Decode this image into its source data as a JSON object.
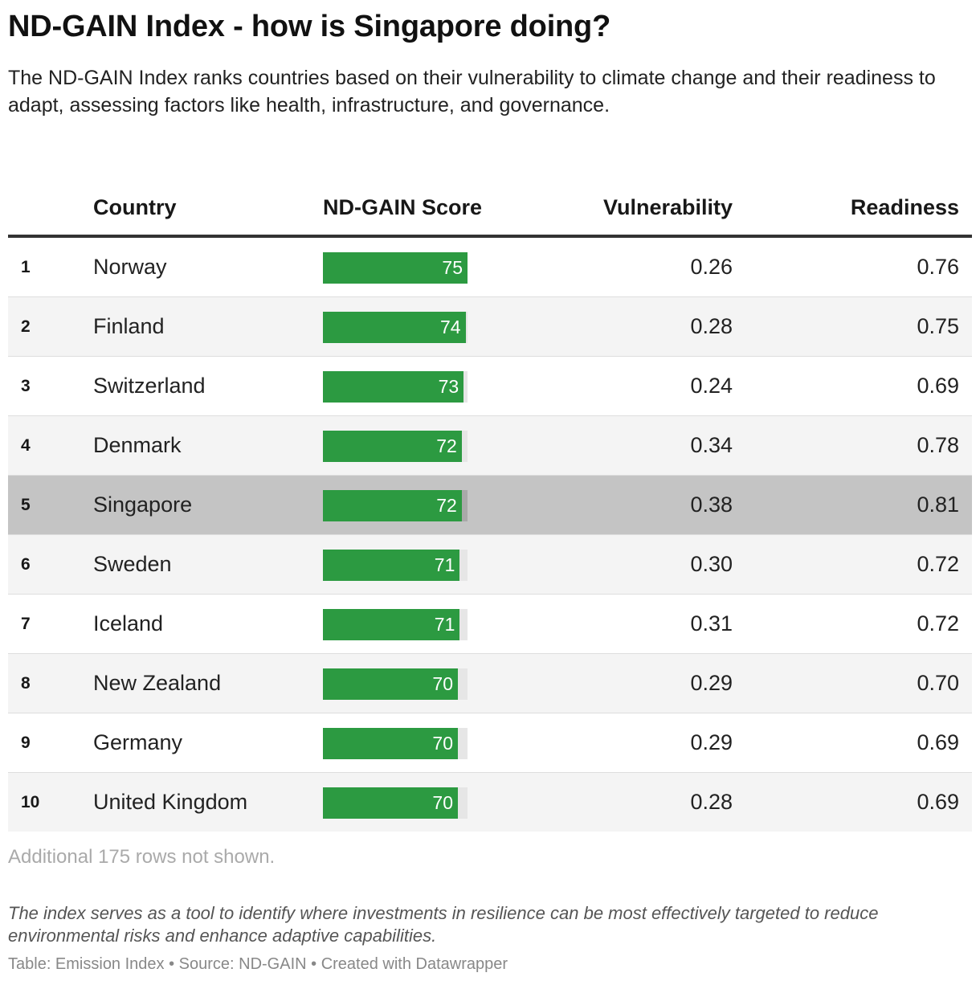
{
  "title": "ND-GAIN Index - how is Singapore doing?",
  "subtitle": "The ND-GAIN Index ranks countries based on their vulnerability to climate change and their readiness to adapt, assessing factors like health, infrastructure, and governance.",
  "columns": {
    "country": "Country",
    "score": "ND-GAIN Score",
    "vulnerability": "Vulnerability",
    "readiness": "Readiness"
  },
  "colors": {
    "bar": "#2c9a41",
    "bar_track": "#e6e6e6",
    "highlight_row": "#c4c4c4",
    "alt_row": "#f4f4f4"
  },
  "highlight_country": "Singapore",
  "more_rows_text": "Additional 175 rows not shown.",
  "note": "The index serves as a tool to identify where investments in resilience can be most effectively targeted to reduce environmental risks and enhance adaptive capabilities.",
  "source": "Table: Emission Index • Source: ND-GAIN • Created with Datawrapper",
  "chart_data": {
    "type": "table",
    "score_bar_range": [
      0,
      75
    ],
    "rows": [
      {
        "rank": "1",
        "country": "Norway",
        "score": 75,
        "vulnerability": "0.26",
        "readiness": "0.76"
      },
      {
        "rank": "2",
        "country": "Finland",
        "score": 74,
        "vulnerability": "0.28",
        "readiness": "0.75"
      },
      {
        "rank": "3",
        "country": "Switzerland",
        "score": 73,
        "vulnerability": "0.24",
        "readiness": "0.69"
      },
      {
        "rank": "4",
        "country": "Denmark",
        "score": 72,
        "vulnerability": "0.34",
        "readiness": "0.78"
      },
      {
        "rank": "5",
        "country": "Singapore",
        "score": 72,
        "vulnerability": "0.38",
        "readiness": "0.81"
      },
      {
        "rank": "6",
        "country": "Sweden",
        "score": 71,
        "vulnerability": "0.30",
        "readiness": "0.72"
      },
      {
        "rank": "7",
        "country": "Iceland",
        "score": 71,
        "vulnerability": "0.31",
        "readiness": "0.72"
      },
      {
        "rank": "8",
        "country": "New Zealand",
        "score": 70,
        "vulnerability": "0.29",
        "readiness": "0.70"
      },
      {
        "rank": "9",
        "country": "Germany",
        "score": 70,
        "vulnerability": "0.29",
        "readiness": "0.69"
      },
      {
        "rank": "10",
        "country": "United Kingdom",
        "score": 70,
        "vulnerability": "0.28",
        "readiness": "0.69"
      }
    ]
  }
}
